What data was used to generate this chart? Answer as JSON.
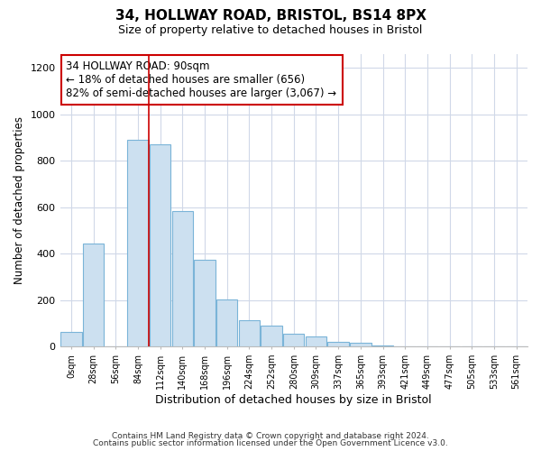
{
  "title": "34, HOLLWAY ROAD, BRISTOL, BS14 8PX",
  "subtitle": "Size of property relative to detached houses in Bristol",
  "xlabel": "Distribution of detached houses by size in Bristol",
  "ylabel": "Number of detached properties",
  "bar_labels": [
    "0sqm",
    "28sqm",
    "56sqm",
    "84sqm",
    "112sqm",
    "140sqm",
    "168sqm",
    "196sqm",
    "224sqm",
    "252sqm",
    "280sqm",
    "309sqm",
    "337sqm",
    "365sqm",
    "393sqm",
    "421sqm",
    "449sqm",
    "477sqm",
    "505sqm",
    "533sqm",
    "561sqm"
  ],
  "bar_values": [
    65,
    445,
    0,
    890,
    870,
    585,
    375,
    205,
    115,
    90,
    55,
    45,
    20,
    15,
    5,
    0,
    0,
    0,
    0,
    0,
    0
  ],
  "bar_color": "#cce0f0",
  "bar_edge_color": "#7ab4d8",
  "property_line_color": "#cc0000",
  "annotation_box_text": "34 HOLLWAY ROAD: 90sqm\n← 18% of detached houses are smaller (656)\n82% of semi-detached houses are larger (3,067) →",
  "annotation_box_color": "#cc0000",
  "ylim": [
    0,
    1260
  ],
  "yticks": [
    0,
    200,
    400,
    600,
    800,
    1000,
    1200
  ],
  "footer_line1": "Contains HM Land Registry data © Crown copyright and database right 2024.",
  "footer_line2": "Contains public sector information licensed under the Open Government Licence v3.0.",
  "background_color": "#ffffff",
  "grid_color": "#d0d8e8",
  "title_fontsize": 11,
  "subtitle_fontsize": 9,
  "ylabel_fontsize": 8.5,
  "xlabel_fontsize": 9
}
